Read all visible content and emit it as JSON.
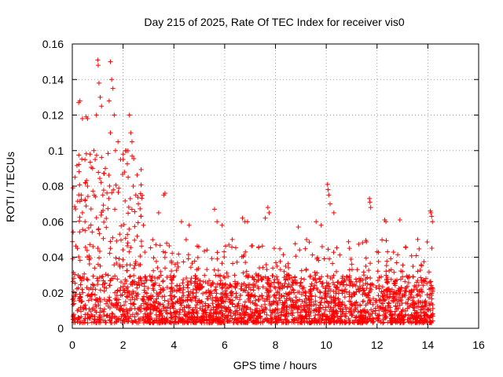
{
  "chart_data": {
    "type": "scatter",
    "title": "Day 215 of 2025, Rate Of TEC Index for receiver vis0",
    "xlabel": "GPS time / hours",
    "ylabel": "ROTI / TECUs",
    "xlim": [
      0,
      16
    ],
    "ylim": [
      0,
      0.16
    ],
    "xticks": [
      0,
      2,
      4,
      6,
      8,
      10,
      12,
      14,
      16
    ],
    "yticks": [
      0,
      0.02,
      0.04,
      0.06,
      0.08,
      0.1,
      0.12,
      0.14,
      0.16
    ],
    "xtick_labels": [
      "0",
      "2",
      "4",
      "6",
      "8",
      "10",
      "12",
      "14",
      "16"
    ],
    "ytick_labels": [
      "0",
      "0.02",
      "0.04",
      "0.06",
      "0.08",
      "0.1",
      "0.12",
      "0.14",
      "0.16"
    ],
    "grid": true,
    "marker": "+",
    "color": "#ff0000",
    "series": [
      {
        "name": "ROTI",
        "x_range": [
          0,
          14.2
        ],
        "typical_range": [
          0.003,
          0.03
        ],
        "outliers": [
          [
            0.25,
            0.127
          ],
          [
            0.3,
            0.128
          ],
          [
            0.4,
            0.118
          ],
          [
            0.55,
            0.119
          ],
          [
            0.6,
            0.118
          ],
          [
            0.95,
            0.12
          ],
          [
            1.0,
            0.151
          ],
          [
            1.02,
            0.148
          ],
          [
            1.05,
            0.138
          ],
          [
            1.1,
            0.13
          ],
          [
            1.15,
            0.125
          ],
          [
            0.85,
            0.1
          ],
          [
            0.9,
            0.095
          ],
          [
            0.7,
            0.098
          ],
          [
            0.8,
            0.09
          ],
          [
            0.6,
            0.08
          ],
          [
            0.35,
            0.075
          ],
          [
            0.4,
            0.065
          ],
          [
            1.5,
            0.15
          ],
          [
            1.55,
            0.14
          ],
          [
            1.6,
            0.135
          ],
          [
            1.45,
            0.128
          ],
          [
            1.65,
            0.12
          ],
          [
            1.5,
            0.11
          ],
          [
            1.7,
            0.1
          ],
          [
            1.8,
            0.105
          ],
          [
            1.3,
            0.09
          ],
          [
            1.9,
            0.095
          ],
          [
            2.0,
            0.098
          ],
          [
            2.1,
            0.1
          ],
          [
            2.25,
            0.12
          ],
          [
            2.3,
            0.11
          ],
          [
            2.35,
            0.105
          ],
          [
            2.2,
            0.085
          ],
          [
            2.4,
            0.08
          ],
          [
            2.5,
            0.075
          ],
          [
            2.6,
            0.07
          ],
          [
            2.7,
            0.063
          ],
          [
            2.8,
            0.058
          ],
          [
            1.2,
            0.075
          ],
          [
            0.5,
            0.06
          ],
          [
            0.2,
            0.045
          ],
          [
            3.6,
            0.075
          ],
          [
            3.65,
            0.076
          ],
          [
            3.4,
            0.065
          ],
          [
            4.3,
            0.06
          ],
          [
            4.6,
            0.058
          ],
          [
            5.6,
            0.067
          ],
          [
            5.7,
            0.06
          ],
          [
            5.9,
            0.058
          ],
          [
            6.3,
            0.05
          ],
          [
            6.7,
            0.062
          ],
          [
            6.8,
            0.06
          ],
          [
            6.9,
            0.06
          ],
          [
            7.7,
            0.068
          ],
          [
            7.75,
            0.065
          ],
          [
            7.6,
            0.062
          ],
          [
            8.9,
            0.057
          ],
          [
            9.6,
            0.06
          ],
          [
            9.8,
            0.058
          ],
          [
            10.05,
            0.081
          ],
          [
            10.07,
            0.078
          ],
          [
            10.1,
            0.075
          ],
          [
            10.15,
            0.07
          ],
          [
            10.3,
            0.065
          ],
          [
            11.7,
            0.073
          ],
          [
            11.72,
            0.071
          ],
          [
            11.75,
            0.068
          ],
          [
            12.3,
            0.061
          ],
          [
            12.35,
            0.06
          ],
          [
            12.9,
            0.061
          ],
          [
            13.6,
            0.05
          ],
          [
            14.1,
            0.066
          ],
          [
            14.12,
            0.065
          ],
          [
            14.15,
            0.063
          ],
          [
            14.18,
            0.06
          ]
        ]
      }
    ]
  }
}
